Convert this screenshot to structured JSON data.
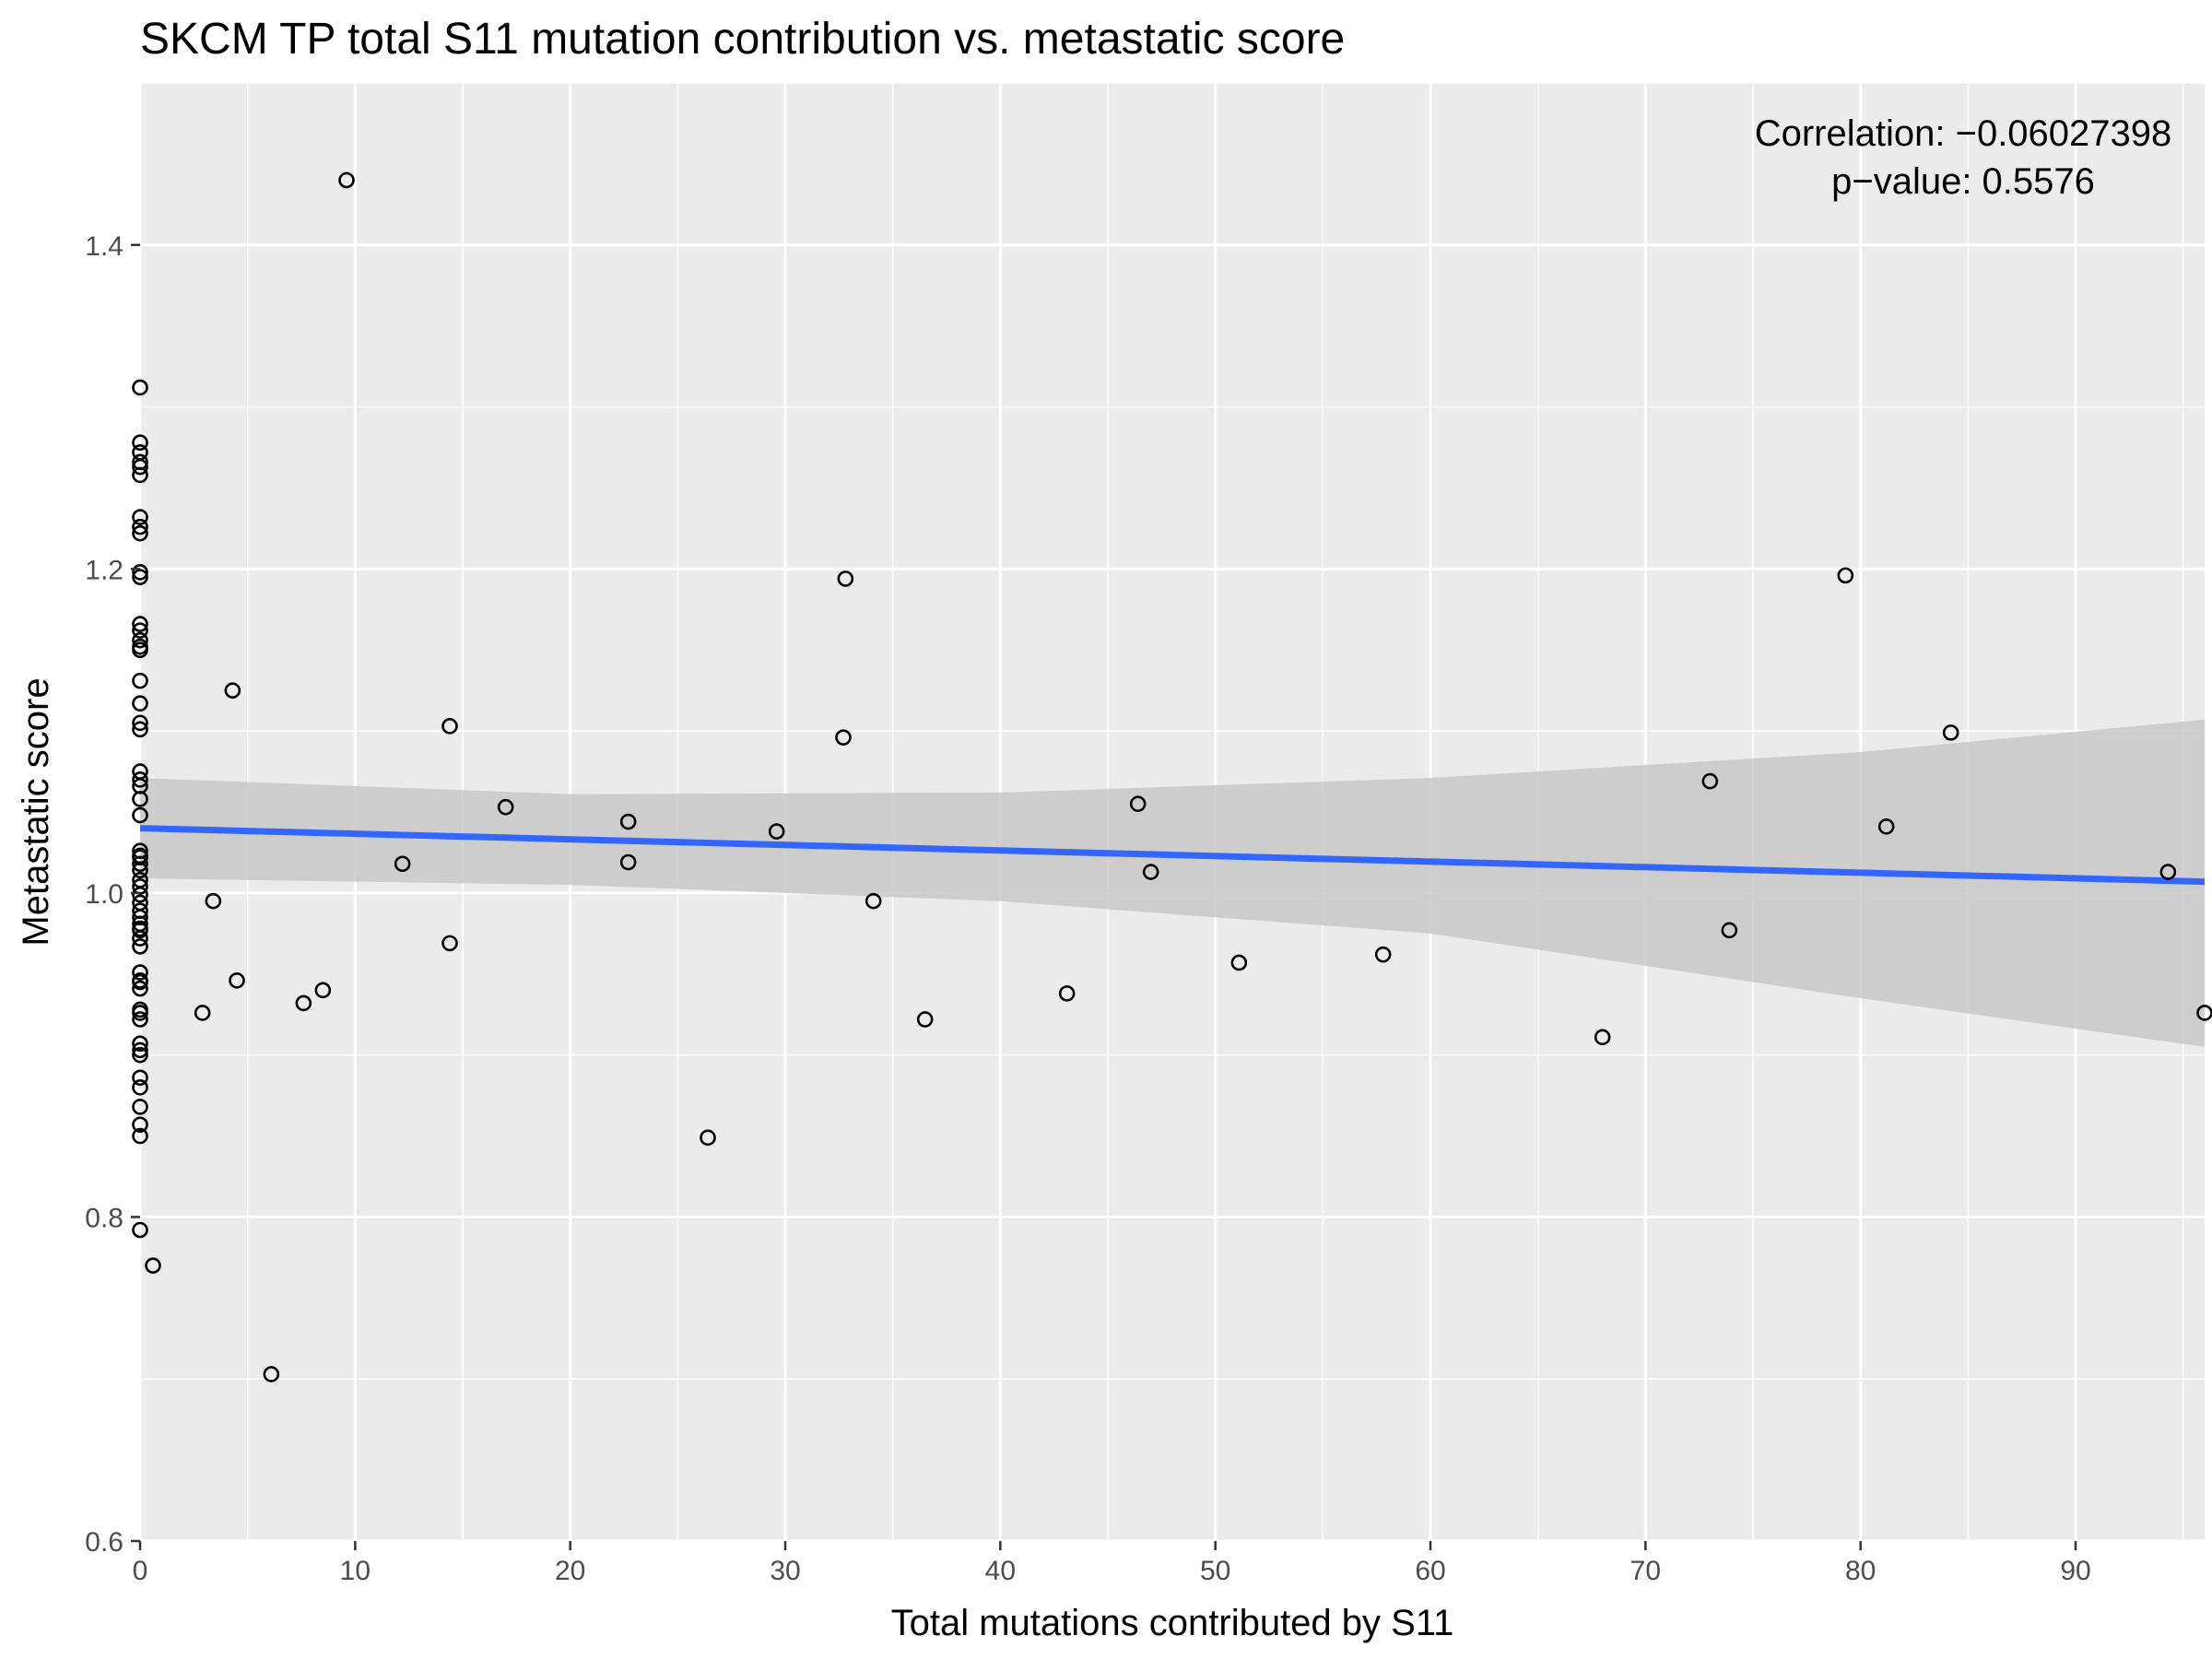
{
  "chart_data": {
    "type": "scatter",
    "title": "SKCM TP total S11 mutation contribution vs. metastatic score",
    "xlabel": "Total mutations contributed by S11",
    "ylabel": "Metastatic score",
    "xlim": [
      0,
      96
    ],
    "ylim": [
      0.6,
      1.5
    ],
    "x_ticks": [
      0,
      10,
      20,
      30,
      40,
      50,
      60,
      70,
      80,
      90
    ],
    "y_ticks": [
      0.6,
      0.8,
      1.0,
      1.2,
      1.4
    ],
    "x_tick_labels": [
      "0",
      "10",
      "20",
      "30",
      "40",
      "50",
      "60",
      "70",
      "80",
      "90"
    ],
    "y_tick_labels": [
      "0.6",
      "0.8",
      "1.0",
      "1.2",
      "1.4"
    ],
    "grid": true,
    "annotation": [
      "Correlation: −0.06027398",
      "p−value: 0.5576"
    ],
    "annotation_position": "top-right",
    "colors": {
      "panel": "#ebebeb",
      "grid": "#ffffff",
      "fit_line": "#3366ff",
      "confidence_band": "#c8c8c8",
      "point_stroke": "#000000"
    },
    "fit": {
      "x": [
        0,
        96
      ],
      "y": [
        1.04,
        1.007
      ],
      "ci_x": [
        0,
        20,
        40,
        60,
        80,
        96
      ],
      "ci_low": [
        1.009,
        1.005,
        0.995,
        0.975,
        0.935,
        0.905
      ],
      "ci_high": [
        1.071,
        1.061,
        1.062,
        1.071,
        1.087,
        1.107
      ]
    },
    "series": [
      {
        "x": [
          0,
          0,
          0,
          0,
          0,
          0,
          0,
          0,
          0,
          0,
          0,
          0,
          0,
          0,
          0,
          0,
          0,
          0,
          0,
          0,
          0,
          0,
          0,
          0,
          0,
          0,
          0,
          0,
          0,
          0,
          0,
          0,
          0,
          0,
          0,
          0,
          0,
          0,
          0,
          0,
          0,
          0,
          0,
          0,
          0,
          0,
          0,
          0,
          0,
          0,
          0,
          0,
          0,
          0,
          0,
          0,
          0,
          0.6,
          2.9,
          3.4,
          4.3,
          4.5,
          6.1,
          7.6,
          8.5,
          9.6,
          12.2,
          14.4,
          14.4,
          17.0,
          22.7,
          22.7,
          26.4,
          29.6,
          32.7,
          32.8,
          34.1,
          36.5,
          43.1,
          46.4,
          47.0,
          51.1,
          57.8,
          68.0,
          73.0,
          73.9,
          79.3,
          81.2,
          84.2,
          94.3,
          96.0
        ],
        "y": [
          1.312,
          1.278,
          1.272,
          1.266,
          1.258,
          1.232,
          1.226,
          1.222,
          1.198,
          1.195,
          1.166,
          1.162,
          1.156,
          1.15,
          1.131,
          1.117,
          1.105,
          1.101,
          1.075,
          1.07,
          1.066,
          1.058,
          1.048,
          1.026,
          1.022,
          1.018,
          1.014,
          1.004,
          0.999,
          0.994,
          0.989,
          0.985,
          0.981,
          0.977,
          0.972,
          0.967,
          0.951,
          0.946,
          0.941,
          0.928,
          0.922,
          0.907,
          0.9,
          0.886,
          0.88,
          0.868,
          0.857,
          0.85,
          0.792,
          1.263,
          1.152,
          1.023,
          1.008,
          0.978,
          0.945,
          0.926,
          0.903,
          0.77,
          0.926,
          0.995,
          1.125,
          0.946,
          0.703,
          0.932,
          0.94,
          1.44,
          1.018,
          1.103,
          0.969,
          1.053,
          1.044,
          1.019,
          0.849,
          1.038,
          1.096,
          1.194,
          0.995,
          0.922,
          0.938,
          1.055,
          1.013,
          0.957,
          0.962,
          0.911,
          1.069,
          0.977,
          1.196,
          1.041,
          1.099,
          1.013,
          0.926
        ]
      }
    ]
  }
}
